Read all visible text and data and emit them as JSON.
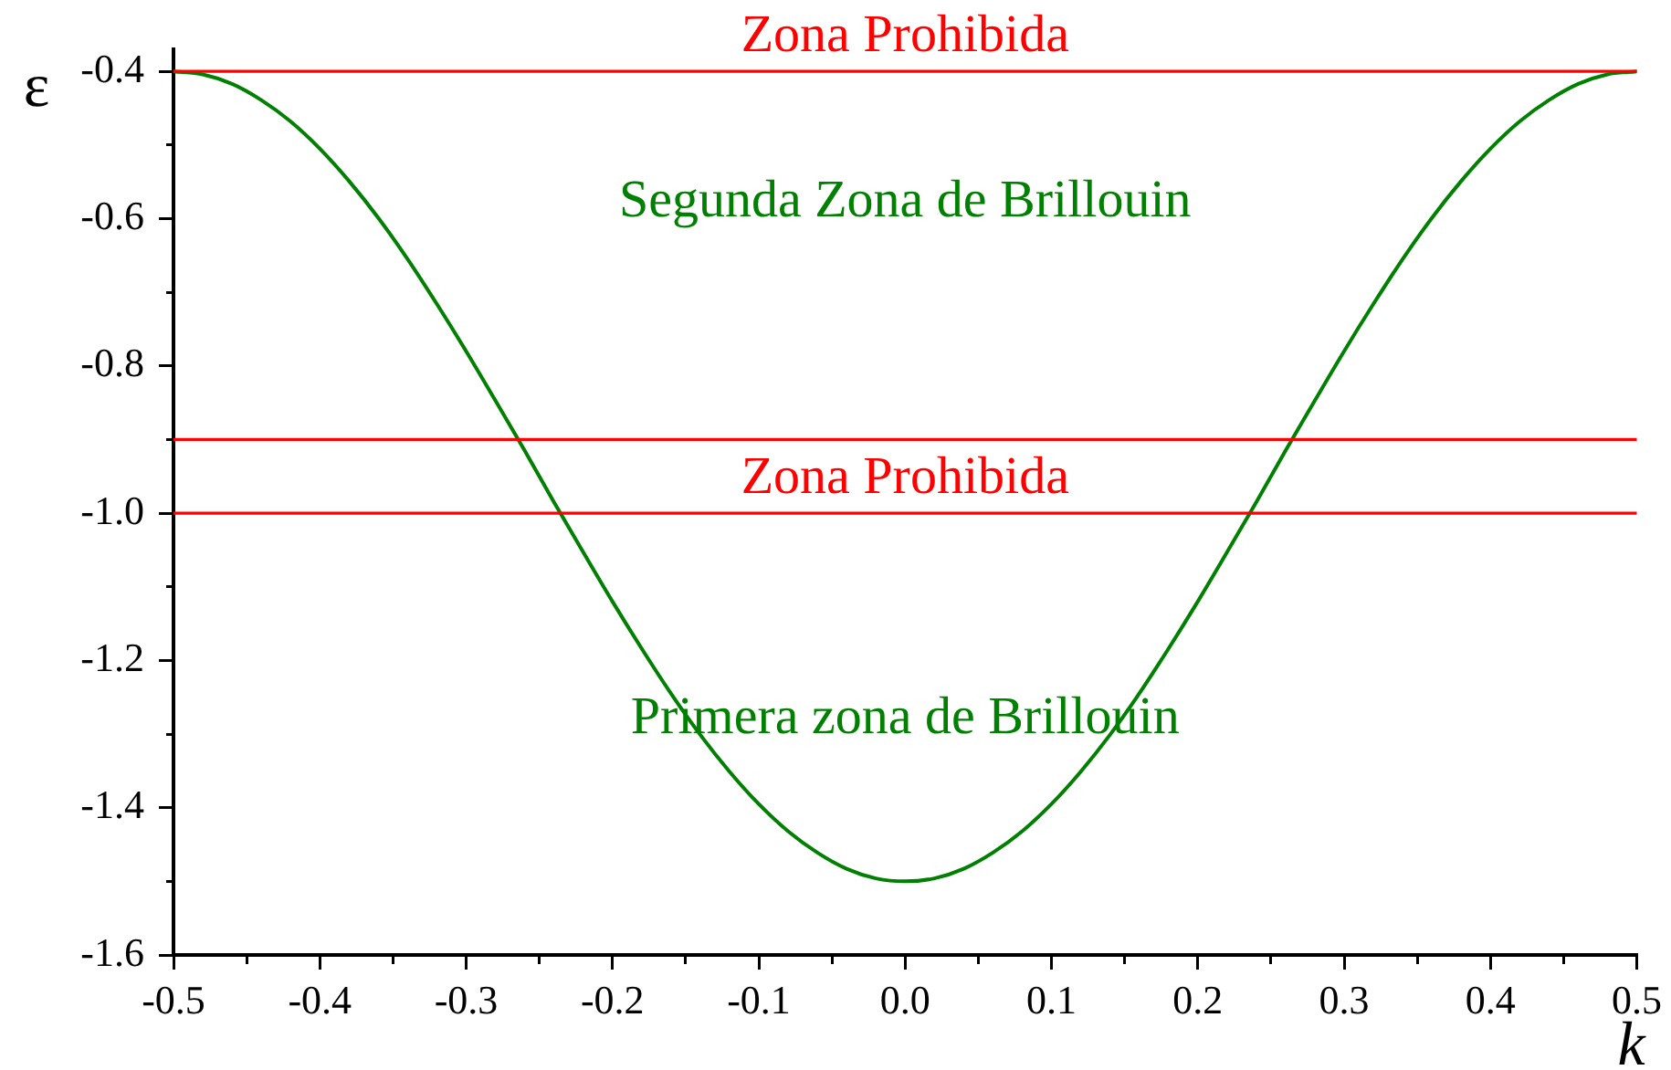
{
  "chart_data": {
    "type": "line",
    "xlabel": "k",
    "ylabel": "ε",
    "x": [
      -0.5,
      -0.48,
      -0.46,
      -0.44,
      -0.42,
      -0.4,
      -0.38,
      -0.36,
      -0.34,
      -0.32,
      -0.3,
      -0.28,
      -0.26,
      -0.24,
      -0.22,
      -0.2,
      -0.18,
      -0.16,
      -0.14,
      -0.12,
      -0.1,
      -0.08,
      -0.06,
      -0.04,
      -0.02,
      0,
      0.02,
      0.04,
      0.06,
      0.08,
      0.1,
      0.12,
      0.14,
      0.16,
      0.18,
      0.2,
      0.22,
      0.24,
      0.26,
      0.28,
      0.3,
      0.32,
      0.34,
      0.36,
      0.38,
      0.4,
      0.42,
      0.44,
      0.46,
      0.48,
      0.5
    ],
    "series": [
      {
        "color": "#008000",
        "values": [
          -0.4,
          -0.404,
          -0.417,
          -0.439,
          -0.468,
          -0.505,
          -0.549,
          -0.599,
          -0.655,
          -0.716,
          -0.78,
          -0.847,
          -0.915,
          -0.985,
          -1.053,
          -1.12,
          -1.184,
          -1.245,
          -1.301,
          -1.351,
          -1.395,
          -1.432,
          -1.461,
          -1.483,
          -1.496,
          -1.5,
          -1.496,
          -1.483,
          -1.461,
          -1.432,
          -1.395,
          -1.351,
          -1.301,
          -1.245,
          -1.184,
          -1.12,
          -1.053,
          -0.985,
          -0.915,
          -0.847,
          -0.78,
          -0.716,
          -0.655,
          -0.599,
          -0.549,
          -0.505,
          -0.468,
          -0.439,
          -0.417,
          -0.404,
          -0.4
        ]
      }
    ],
    "xlim": [
      -0.5,
      0.5
    ],
    "ylim": [
      -1.6,
      -0.37
    ],
    "xticks": [
      -0.5,
      {
        "value": -0.45,
        "label": null
      },
      -0.4,
      {
        "value": -0.35,
        "label": null
      },
      -0.3,
      {
        "value": -0.25,
        "label": null
      },
      -0.2,
      {
        "value": -0.15,
        "label": null
      },
      -0.1,
      {
        "value": -0.05,
        "label": null
      },
      {
        "value": 0,
        "label": "0.0"
      },
      {
        "value": 0.05,
        "label": null
      },
      0.1,
      {
        "value": 0.15,
        "label": null
      },
      0.2,
      {
        "value": 0.25,
        "label": null
      },
      0.3,
      {
        "value": 0.35,
        "label": null
      },
      0.4,
      {
        "value": 0.45,
        "label": null
      },
      0.5
    ],
    "yticks": [
      -1.6,
      {
        "value": -1.5,
        "label": null
      },
      -1.4,
      {
        "value": -1.3,
        "label": null
      },
      -1.2,
      {
        "value": -1.1,
        "label": null
      },
      {
        "value": -1,
        "label": "-1.0"
      },
      {
        "value": -0.9,
        "label": null
      },
      -0.8,
      {
        "value": -0.7,
        "label": null
      },
      -0.6,
      {
        "value": -0.5,
        "label": null
      },
      -0.4
    ],
    "ref_lines": [
      {
        "axis": "y",
        "value": -0.4,
        "label": "Zona Prohibida",
        "color": "#ff0000"
      },
      {
        "axis": "y",
        "value": -0.9,
        "color": "#ff0000"
      },
      {
        "axis": "y",
        "value": -1.0,
        "label": "Zona Prohibida",
        "color": "#ff0000"
      }
    ],
    "annotations": [
      "Segunda Zona de Brillouin",
      "Primera zona de Brillouin"
    ],
    "grid": false,
    "legend": false
  }
}
